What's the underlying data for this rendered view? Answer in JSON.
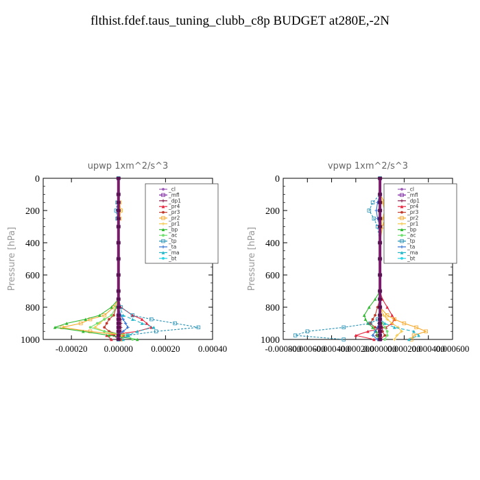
{
  "page_title": "flthist.fdef.taus_tuning_clubb_c8p  BUDGET at280E,-2N",
  "legend_colors": {
    "_cl": "#9b59b6",
    "_mfl": "#7b1fa2",
    "_dp1": "#8b1a4a",
    "_pr4": "#e8213a",
    "_pr3": "#c0392b",
    "_pr2": "#f5a623",
    "_pr1": "#f5c542",
    "_bp": "#2eb82e",
    "_ac": "#6ee06e",
    "_tp": "#1f8fb4",
    "_ta": "#2c6fd6",
    "_ma": "#1fb4c8",
    "_bt": "#27d3e6"
  },
  "chart_data": [
    {
      "type": "line",
      "title": "upwp   1xm^2/s^3",
      "ylabel": "Pressure [hPa]",
      "xlabel": "",
      "ylim": [
        1000,
        0
      ],
      "xlim": [
        -0.00032,
        0.0004
      ],
      "y_ticks": [
        "0",
        "200",
        "400",
        "600",
        "800",
        "1000"
      ],
      "x_ticks": [
        "-0.00020",
        "0.00000",
        "0.00020",
        "0.00040"
      ],
      "grid": false,
      "legend_position": "top-right",
      "levels": [
        0,
        100,
        150,
        200,
        250,
        300,
        400,
        500,
        600,
        700,
        750,
        800,
        850,
        875,
        900,
        925,
        950,
        975,
        1000
      ],
      "series": [
        {
          "name": "_cl",
          "values": [
            0,
            0,
            0,
            0,
            0,
            0,
            0,
            0,
            0,
            0,
            0,
            0,
            0,
            0,
            0,
            0,
            0,
            0,
            0
          ]
        },
        {
          "name": "_mfl",
          "values": [
            0,
            0,
            0,
            0,
            0,
            0,
            0,
            0,
            0,
            0,
            0,
            0,
            0,
            0,
            0,
            0,
            0,
            0,
            0
          ]
        },
        {
          "name": "_dp1",
          "values": [
            0,
            0,
            0,
            0,
            0,
            0,
            0,
            0,
            0,
            0,
            0,
            0,
            5e-06,
            1e-05,
            1e-05,
            1e-05,
            1e-05,
            -2e-05,
            0
          ]
        },
        {
          "name": "_pr4",
          "values": [
            0,
            0,
            0,
            0,
            0,
            0,
            0,
            0,
            0,
            0,
            0,
            1e-05,
            6e-05,
            0.0001,
            0.00012,
            0.00014,
            8e-05,
            -5e-05,
            -3e-05
          ]
        },
        {
          "name": "_pr3",
          "values": [
            0,
            0,
            0,
            0,
            0,
            0,
            0,
            0,
            0,
            0,
            0,
            -1e-05,
            -2e-05,
            -4e-05,
            -5e-05,
            -6e-05,
            -4e-05,
            2e-05,
            1e-05
          ]
        },
        {
          "name": "_pr2",
          "values": [
            0,
            0,
            5e-06,
            1e-05,
            5e-06,
            0,
            0,
            0,
            0,
            0,
            0,
            -2e-05,
            -6e-05,
            -0.00012,
            -0.00016,
            -0.00024,
            -0.00012,
            2e-05,
            1e-05
          ]
        },
        {
          "name": "_pr1",
          "values": [
            0,
            0,
            5e-06,
            1e-05,
            5e-06,
            0,
            0,
            0,
            0,
            0,
            0,
            -1e-05,
            -3e-05,
            -6e-05,
            -8e-05,
            -0.0001,
            -6e-05,
            1e-05,
            0
          ]
        },
        {
          "name": "_bp",
          "values": [
            0,
            0,
            0,
            0,
            0,
            0,
            0,
            0,
            0,
            0,
            0,
            -3e-05,
            -8e-05,
            -0.00014,
            -0.00022,
            -0.00027,
            -0.00015,
            -4e-05,
            8e-05
          ]
        },
        {
          "name": "_ac",
          "values": [
            0,
            0,
            0,
            0,
            0,
            0,
            0,
            0,
            0,
            0,
            0,
            -1e-05,
            -3e-05,
            -6e-05,
            -9e-05,
            -0.00012,
            -6e-05,
            4e-05,
            6e-05
          ]
        },
        {
          "name": "_tp",
          "values": [
            0,
            0,
            -5e-06,
            -1e-05,
            -5e-06,
            0,
            0,
            0,
            0,
            0,
            0,
            1e-05,
            6e-05,
            0.00014,
            0.00024,
            0.00034,
            0.00016,
            4e-05,
            0
          ]
        },
        {
          "name": "_ta",
          "values": [
            0,
            0,
            0,
            -5e-06,
            0,
            0,
            0,
            0,
            0,
            0,
            0,
            0,
            1e-05,
            2e-05,
            3e-05,
            4e-05,
            2e-05,
            0,
            0
          ]
        },
        {
          "name": "_ma",
          "values": [
            0,
            0,
            0,
            0,
            0,
            0,
            0,
            0,
            0,
            0,
            0,
            5e-06,
            2e-05,
            6e-05,
            0.0001,
            0.00015,
            8e-05,
            4e-05,
            2e-05
          ]
        },
        {
          "name": "_bt",
          "values": [
            0,
            0,
            0,
            0,
            0,
            0,
            0,
            0,
            0,
            0,
            0,
            0,
            0,
            0,
            0,
            0,
            0,
            0,
            0
          ]
        }
      ]
    },
    {
      "type": "line",
      "title": "vpwp   1xm^2/s^3",
      "ylabel": "Pressure [hPa]",
      "xlabel": "",
      "ylim": [
        1000,
        0
      ],
      "xlim": [
        -0.0008,
        0.0006
      ],
      "y_ticks": [
        "0",
        "200",
        "400",
        "600",
        "800",
        "1000"
      ],
      "x_ticks": [
        "-0.000800",
        "-0.000600",
        "-0.000400",
        "-0.000200",
        "0.000000",
        "0.000200",
        "0.000400",
        "0.000600"
      ],
      "grid": false,
      "legend_position": "top-right",
      "levels": [
        0,
        100,
        150,
        200,
        250,
        300,
        400,
        500,
        600,
        700,
        750,
        800,
        850,
        875,
        900,
        925,
        950,
        975,
        1000
      ],
      "series": [
        {
          "name": "_cl",
          "values": [
            0,
            0,
            0,
            0,
            0,
            0,
            0,
            0,
            0,
            0,
            0,
            0,
            0,
            0,
            0,
            0,
            0,
            0,
            0
          ]
        },
        {
          "name": "_mfl",
          "values": [
            0,
            0,
            0,
            0,
            0,
            0,
            0,
            0,
            0,
            0,
            0,
            0,
            0,
            0,
            0,
            0,
            0,
            0,
            0
          ]
        },
        {
          "name": "_dp1",
          "values": [
            0,
            0,
            0,
            0,
            0,
            0,
            0,
            0,
            0,
            0,
            0,
            0,
            0,
            0,
            1e-05,
            2e-05,
            2e-05,
            -3e-05,
            0
          ]
        },
        {
          "name": "_pr4",
          "values": [
            0,
            0,
            0,
            0,
            0,
            0,
            0,
            0,
            0,
            0,
            2e-05,
            6e-05,
            0.0001,
            0.00012,
            0.0001,
            5e-05,
            -0.0001,
            -0.0002,
            -5e-05
          ]
        },
        {
          "name": "_pr3",
          "values": [
            0,
            0,
            0,
            0,
            0,
            0,
            0,
            0,
            0,
            0,
            0,
            -2e-05,
            -4e-05,
            -6e-05,
            -8e-05,
            -4e-05,
            2e-05,
            4e-05,
            0
          ]
        },
        {
          "name": "_pr2",
          "values": [
            0,
            0,
            4e-05,
            7e-05,
            4e-05,
            2e-05,
            0,
            0,
            0,
            0,
            0,
            0,
            6e-05,
            0.00012,
            0.0002,
            0.0003,
            0.00038,
            0.00028,
            0.00026
          ]
        },
        {
          "name": "_pr1",
          "values": [
            0,
            0,
            2e-05,
            4e-05,
            2e-05,
            1e-05,
            0,
            0,
            0,
            0,
            0,
            0,
            3e-05,
            6e-05,
            0.0001,
            0.00015,
            0.00018,
            0.00014,
            0.00012
          ]
        },
        {
          "name": "_bp",
          "values": [
            0,
            0,
            0,
            0,
            0,
            0,
            0,
            0,
            0,
            0,
            -4e-05,
            -9e-05,
            -0.00013,
            -0.00012,
            -0.0001,
            -6e-05,
            -3e-05,
            -2e-05,
            -1e-05
          ]
        },
        {
          "name": "_ac",
          "values": [
            0,
            0,
            0,
            0,
            0,
            0,
            0,
            0,
            0,
            0,
            0,
            0,
            0,
            0,
            2e-05,
            4e-05,
            6e-05,
            6e-05,
            4e-05
          ]
        },
        {
          "name": "_tp",
          "values": [
            0,
            0,
            -6e-05,
            -9e-05,
            -5e-05,
            -2e-05,
            0,
            0,
            0,
            0,
            0,
            0,
            0,
            -2e-05,
            -8e-05,
            -0.0003,
            -0.0006,
            -0.0007,
            -0.0003
          ]
        },
        {
          "name": "_ta",
          "values": [
            0,
            0,
            -2e-05,
            -3e-05,
            -2e-05,
            0,
            0,
            0,
            0,
            0,
            0,
            0,
            0,
            0,
            -1e-05,
            -2e-05,
            -4e-05,
            -6e-05,
            -2e-05
          ]
        },
        {
          "name": "_ma",
          "values": [
            0,
            0,
            0,
            0,
            0,
            0,
            0,
            0,
            0,
            0,
            0,
            0,
            0,
            0,
            4e-05,
            0.00012,
            0.00028,
            0.00032,
            0.00024
          ]
        },
        {
          "name": "_bt",
          "values": [
            0,
            0,
            0,
            0,
            0,
            0,
            0,
            0,
            0,
            0,
            0,
            0,
            0,
            0,
            0,
            0,
            0,
            0,
            0
          ]
        }
      ]
    }
  ]
}
